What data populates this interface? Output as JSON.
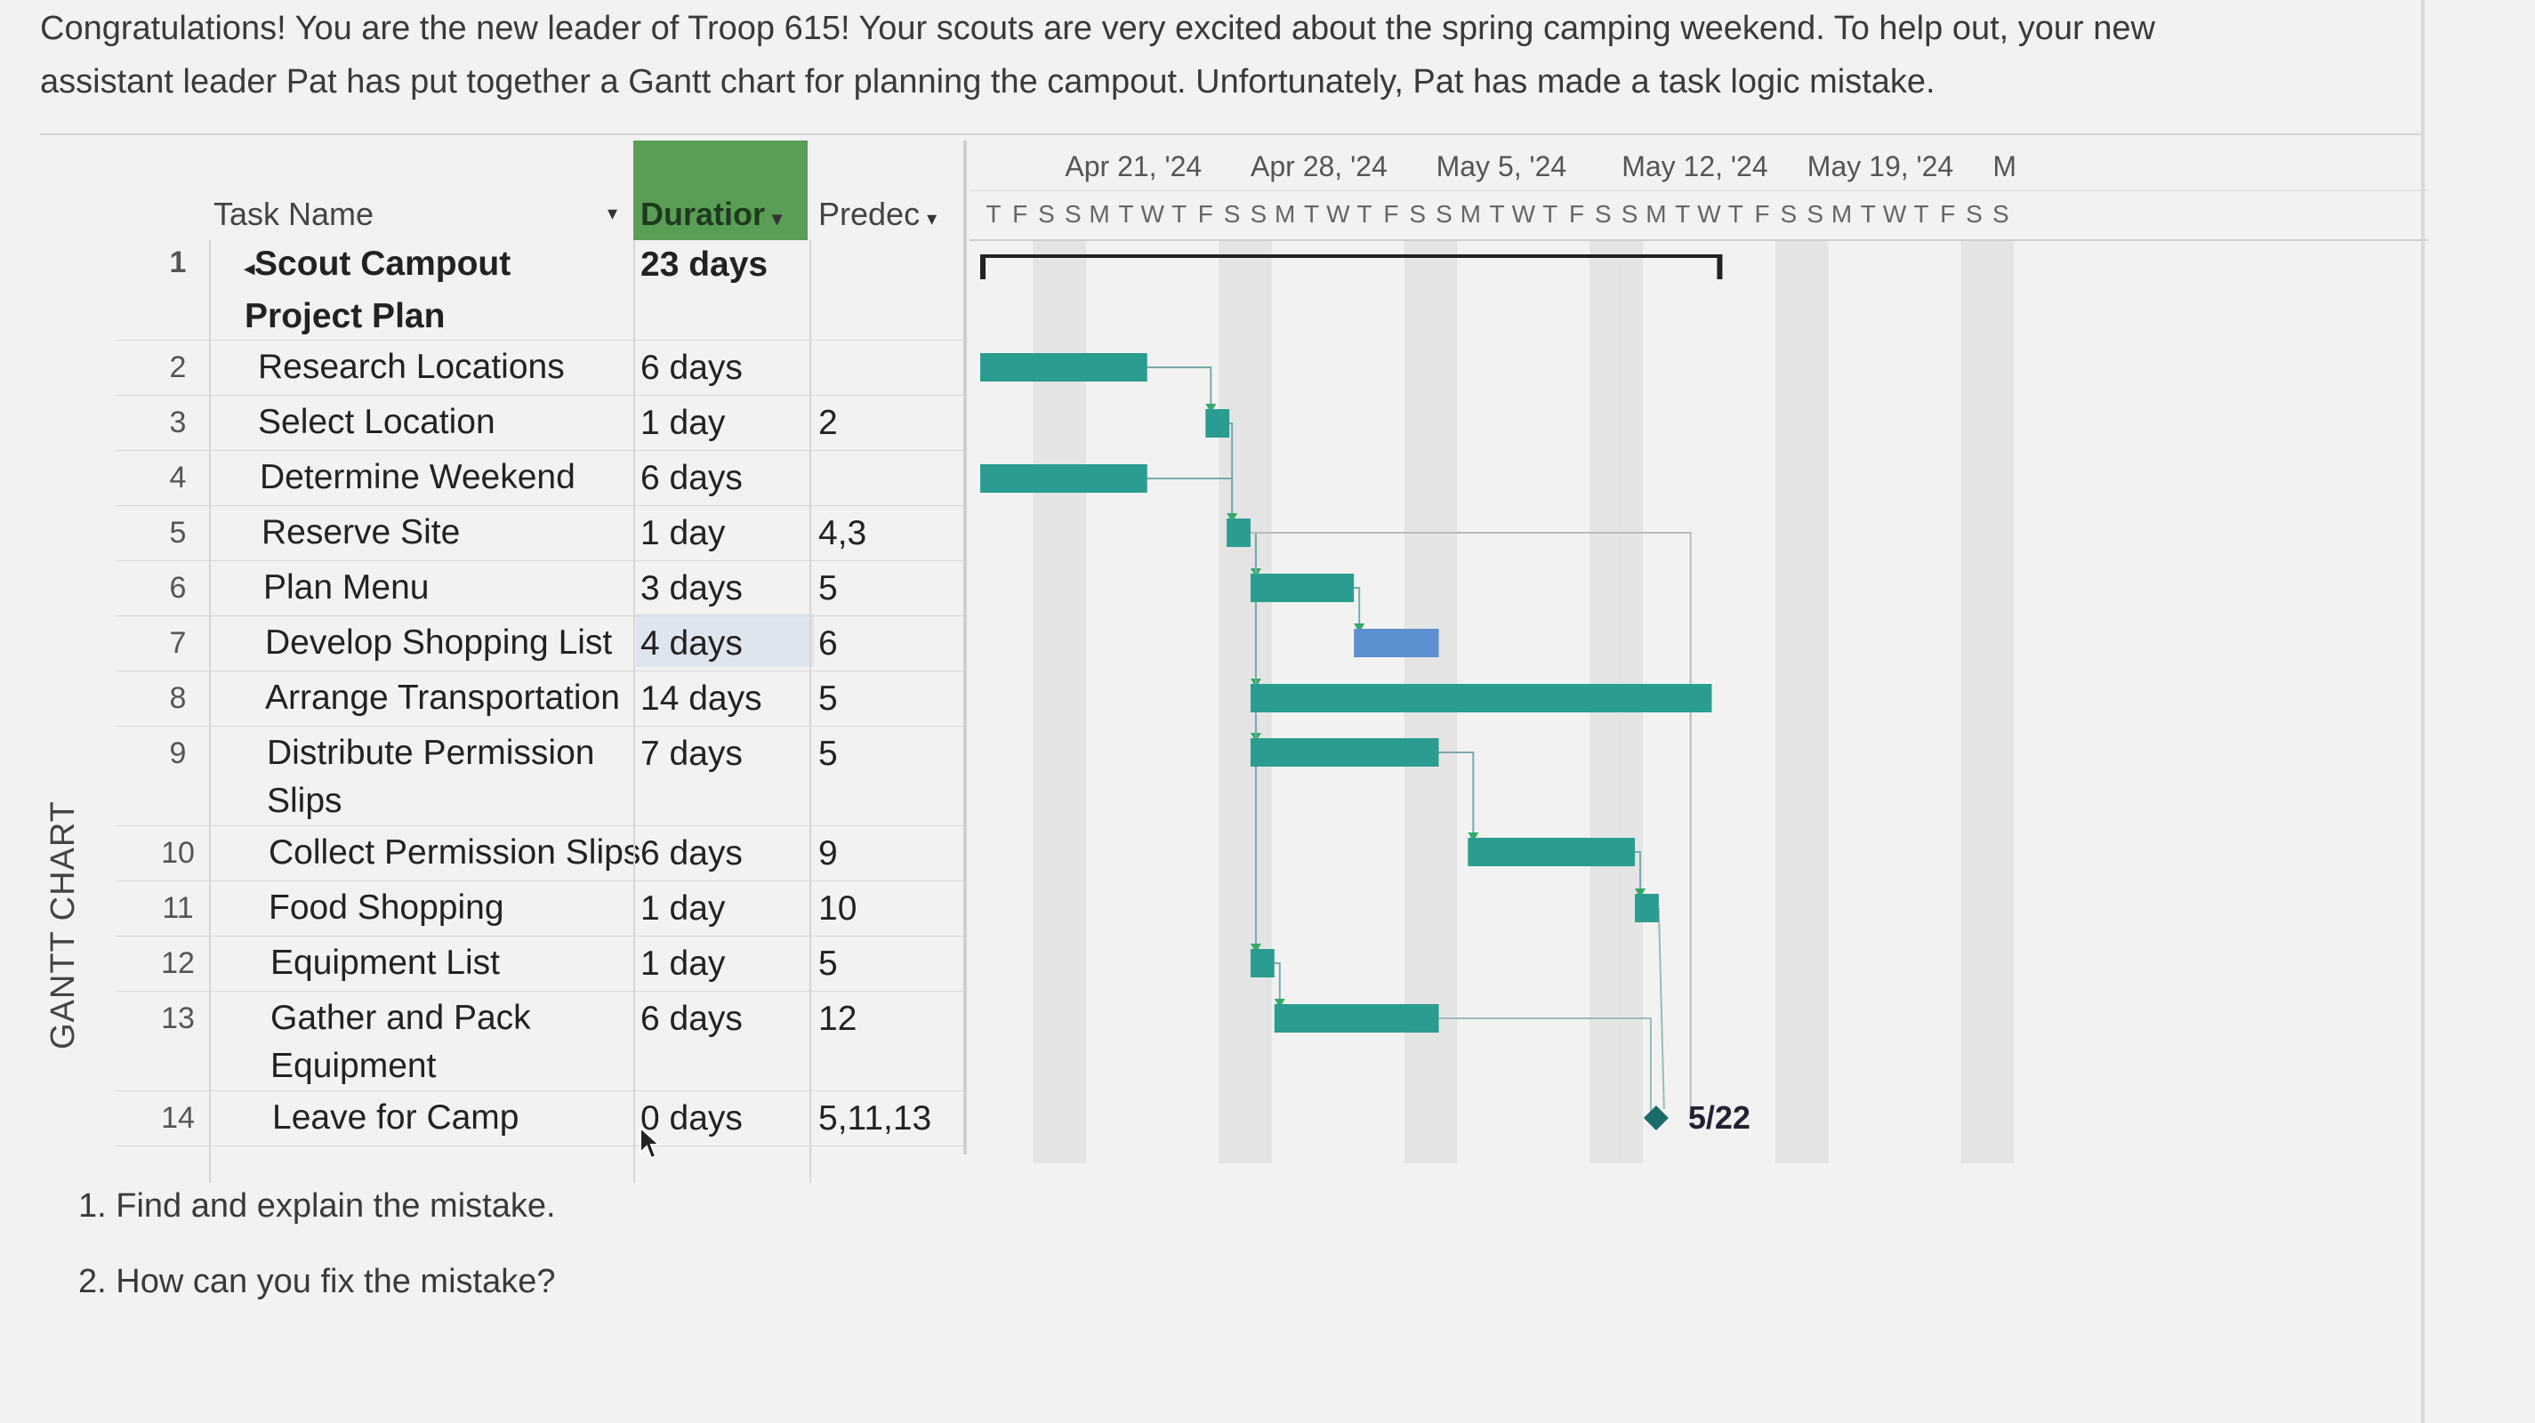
{
  "intro": {
    "line1": "Congratulations!  You are the new leader of Troop 615!  Your scouts are very excited about the spring camping weekend.  To help out, your new",
    "line2": "assistant leader Pat has put together a Gantt chart for planning the campout.  Unfortunately, Pat has made a task logic mistake."
  },
  "side_label": "GANTT CHART",
  "columns": {
    "task_name": "Task Name",
    "duration": "Duratior",
    "predecessors": "Predec"
  },
  "tasks": [
    {
      "id": "1",
      "name": "Scout Campout Project Plan",
      "duration": "23 days",
      "pred": ""
    },
    {
      "id": "2",
      "name": "Research Locations",
      "duration": "6 days",
      "pred": ""
    },
    {
      "id": "3",
      "name": "Select Location",
      "duration": "1 day",
      "pred": "2"
    },
    {
      "id": "4",
      "name": "Determine Weekend",
      "duration": "6 days",
      "pred": ""
    },
    {
      "id": "5",
      "name": "Reserve Site",
      "duration": "1 day",
      "pred": "4,3"
    },
    {
      "id": "6",
      "name": "Plan Menu",
      "duration": "3 days",
      "pred": "5"
    },
    {
      "id": "7",
      "name": "Develop Shopping List",
      "duration": "4 days",
      "pred": "6"
    },
    {
      "id": "8",
      "name": "Arrange Transportation",
      "duration": "14 days",
      "pred": "5"
    },
    {
      "id": "9",
      "name": "Distribute Permission Slips",
      "duration": "7 days",
      "pred": "5"
    },
    {
      "id": "10",
      "name": "Collect Permission Slips",
      "duration": "6 days",
      "pred": "9"
    },
    {
      "id": "11",
      "name": "Food Shopping",
      "duration": "1 day",
      "pred": "10"
    },
    {
      "id": "12",
      "name": "Equipment List",
      "duration": "1 day",
      "pred": "5"
    },
    {
      "id": "13",
      "name": "Gather and Pack Equipment",
      "duration": "6 days",
      "pred": "12"
    },
    {
      "id": "14",
      "name": "Leave for Camp",
      "duration": "0 days",
      "pred": "5,11,13"
    }
  ],
  "timeline": {
    "weeks": [
      "Apr 21, '24",
      "Apr 28, '24",
      "May 5, '24",
      "May 12, '24",
      "May 19, '24",
      "M"
    ],
    "days": [
      "T",
      "F",
      "S",
      "S",
      "M",
      "T",
      "W",
      "T",
      "F",
      "S",
      "S",
      "M",
      "T",
      "W",
      "T",
      "F",
      "S",
      "S",
      "M",
      "T",
      "W",
      "T",
      "F",
      "S",
      "S",
      "M",
      "T",
      "W",
      "T",
      "F",
      "S",
      "S",
      "M",
      "T",
      "W",
      "T",
      "F",
      "S",
      "S"
    ],
    "milestone_label": "5/22"
  },
  "questions": {
    "q1": "1. Find and explain the mistake.",
    "q2": "2. How can you fix the mistake?"
  },
  "colors": {
    "bar": "#2a9d90",
    "critical_bar": "#5b8fcf",
    "duration_header": "#5a9e55",
    "weekend_shade": "#e4e4e4"
  }
}
